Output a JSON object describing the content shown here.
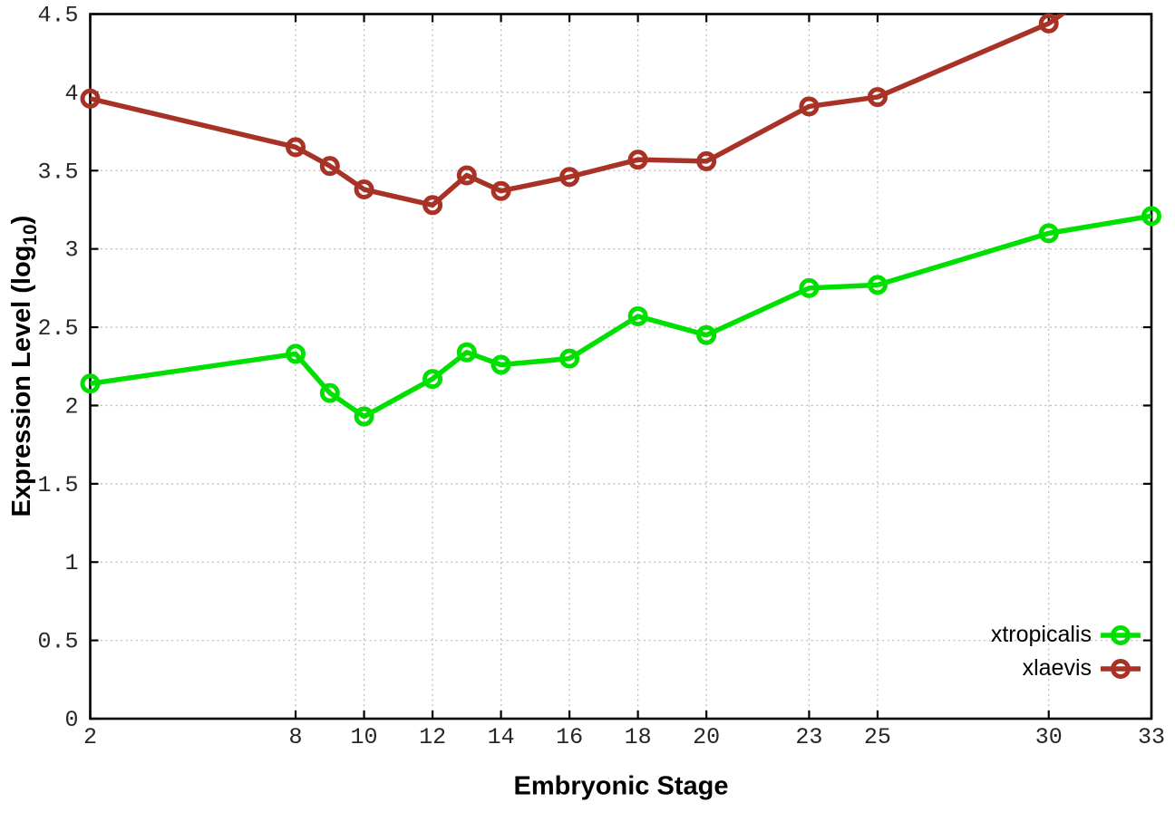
{
  "chart_data": {
    "type": "line",
    "title": "",
    "xlabel": "Embryonic Stage",
    "ylabel": "Expression Level (log10)",
    "ylabel_parts": {
      "prefix": "Expression Level (log",
      "sub": "10",
      "suffix": ")"
    },
    "xlim": [
      2,
      33
    ],
    "ylim": [
      0,
      4.5
    ],
    "xticks": [
      2,
      8,
      10,
      12,
      14,
      16,
      18,
      20,
      23,
      25,
      30,
      33
    ],
    "yticks": [
      0,
      0.5,
      1,
      1.5,
      2,
      2.5,
      3,
      3.5,
      4,
      4.5
    ],
    "grid": true,
    "grid_style": "dotted",
    "legend_position": "bottom-right",
    "x": [
      2,
      8,
      9,
      10,
      12,
      13,
      14,
      16,
      18,
      20,
      23,
      25,
      30,
      33
    ],
    "series": [
      {
        "name": "xtropicalis",
        "color": "#00e000",
        "values": [
          2.14,
          2.33,
          2.08,
          1.93,
          2.17,
          2.34,
          2.26,
          2.3,
          2.57,
          2.45,
          2.75,
          2.77,
          3.1,
          3.21
        ]
      },
      {
        "name": "xlaevis",
        "color": "#a93226",
        "values": [
          3.96,
          3.65,
          3.53,
          3.38,
          3.28,
          3.47,
          3.37,
          3.46,
          3.57,
          3.56,
          3.91,
          3.97,
          4.44,
          4.9
        ]
      }
    ],
    "note": "xlaevis value at stage 33 exceeds the y-axis maximum and is clipped at the plot border",
    "colors": {
      "background": "#ffffff",
      "border": "#000000",
      "grid": "#bdbdbd",
      "tick_text": "#262626"
    }
  }
}
